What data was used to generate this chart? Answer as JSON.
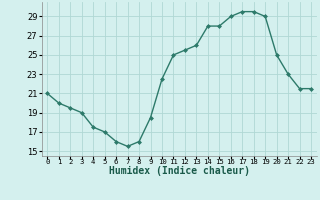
{
  "x": [
    0,
    1,
    2,
    3,
    4,
    5,
    6,
    7,
    8,
    9,
    10,
    11,
    12,
    13,
    14,
    15,
    16,
    17,
    18,
    19,
    20,
    21,
    22,
    23
  ],
  "y": [
    21.0,
    20.0,
    19.5,
    19.0,
    17.5,
    17.0,
    16.0,
    15.5,
    16.0,
    18.5,
    22.5,
    25.0,
    25.5,
    26.0,
    28.0,
    28.0,
    29.0,
    29.5,
    29.5,
    29.0,
    25.0,
    23.0,
    21.5,
    21.5
  ],
  "xlabel": "Humidex (Indice chaleur)",
  "ylim": [
    14.5,
    30.5
  ],
  "yticks": [
    15,
    17,
    19,
    21,
    23,
    25,
    27,
    29
  ],
  "xticks": [
    0,
    1,
    2,
    3,
    4,
    5,
    6,
    7,
    8,
    9,
    10,
    11,
    12,
    13,
    14,
    15,
    16,
    17,
    18,
    19,
    20,
    21,
    22,
    23
  ],
  "xtick_labels": [
    "0",
    "1",
    "2",
    "3",
    "4",
    "5",
    "6",
    "7",
    "8",
    "9",
    "10",
    "11",
    "12",
    "13",
    "14",
    "15",
    "16",
    "17",
    "18",
    "19",
    "20",
    "21",
    "22",
    "23"
  ],
  "line_color": "#2d7a6a",
  "marker_color": "#2d7a6a",
  "bg_color": "#d4f0ee",
  "grid_color": "#b0d8d4",
  "xlabel_color": "#1a5a4a"
}
